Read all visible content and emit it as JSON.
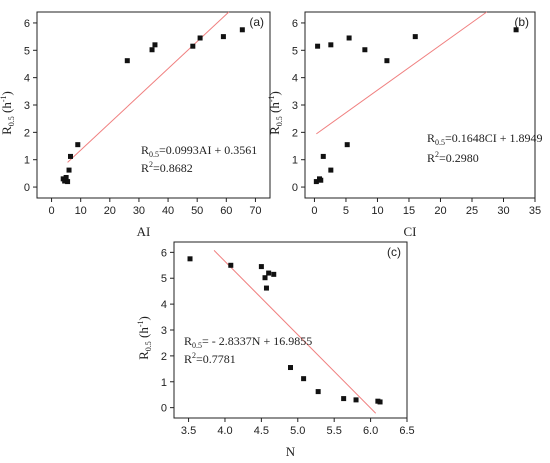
{
  "chart_data": [
    {
      "type": "scatter",
      "panel_label": "(a)",
      "xlabel": "AI",
      "ylabel": {
        "main": "R",
        "sub": "0.5",
        "unit_pre": " (h",
        "unit_sup": "-1",
        "unit_post": ")"
      },
      "xlim": [
        -5,
        75
      ],
      "ylim": [
        -0.4,
        6.4
      ],
      "xticks": [
        0,
        10,
        20,
        30,
        40,
        50,
        60,
        70
      ],
      "yticks": [
        0,
        1,
        2,
        3,
        4,
        5,
        6
      ],
      "grid": false,
      "points": [
        [
          4.0,
          0.3
        ],
        [
          4.5,
          0.22
        ],
        [
          5.0,
          0.35
        ],
        [
          5.5,
          0.2
        ],
        [
          6.0,
          0.62
        ],
        [
          6.5,
          1.12
        ],
        [
          9.0,
          1.55
        ],
        [
          26.0,
          4.62
        ],
        [
          34.5,
          5.02
        ],
        [
          35.5,
          5.2
        ],
        [
          48.5,
          5.15
        ],
        [
          51.0,
          5.45
        ],
        [
          59.0,
          5.5
        ],
        [
          65.5,
          5.75
        ]
      ],
      "fit": {
        "slope": 0.0993,
        "intercept": 0.3561,
        "x_range": [
          5.5,
          70
        ]
      },
      "equation": {
        "lhs_main": "R",
        "lhs_sub": "0.5",
        "rhs": "=0.0993AI + 0.3561"
      },
      "r2": {
        "label": "R",
        "sup": "2",
        "value": "=0.8682"
      }
    },
    {
      "type": "scatter",
      "panel_label": "(b)",
      "xlabel": "CI",
      "ylabel": {
        "main": "R",
        "sub": "0.5",
        "unit_pre": " (h",
        "unit_sup": "-1",
        "unit_post": ")"
      },
      "xlim": [
        -1.5,
        35
      ],
      "ylim": [
        -0.4,
        6.4
      ],
      "xticks": [
        0,
        5,
        10,
        15,
        20,
        25,
        30,
        35
      ],
      "yticks": [
        0,
        1,
        2,
        3,
        4,
        5,
        6
      ],
      "grid": false,
      "points": [
        [
          0.3,
          0.2
        ],
        [
          0.8,
          0.3
        ],
        [
          1.0,
          0.25
        ],
        [
          1.4,
          1.12
        ],
        [
          2.6,
          0.62
        ],
        [
          0.5,
          5.15
        ],
        [
          2.6,
          5.2
        ],
        [
          5.2,
          1.55
        ],
        [
          5.5,
          5.45
        ],
        [
          8.0,
          5.02
        ],
        [
          11.5,
          4.62
        ],
        [
          16.0,
          5.5
        ],
        [
          32.0,
          5.75
        ]
      ],
      "fit": {
        "slope": 0.1648,
        "intercept": 1.8949,
        "x_range": [
          0.3,
          35
        ]
      },
      "equation": {
        "lhs_main": "R",
        "lhs_sub": "0.5",
        "rhs": "=0.1648CI + 1.8949"
      },
      "r2": {
        "label": "R",
        "sup": "2",
        "value": "=0.2980"
      }
    },
    {
      "type": "scatter",
      "panel_label": "(c)",
      "xlabel": "N",
      "ylabel": {
        "main": "R",
        "sub": "0.5",
        "unit_pre": " (h",
        "unit_sup": "-1",
        "unit_post": ")"
      },
      "xlim": [
        3.3,
        6.5
      ],
      "ylim": [
        -0.4,
        6.4
      ],
      "xticks": [
        3.5,
        4.0,
        4.5,
        5.0,
        5.5,
        6.0,
        6.5
      ],
      "xtick_labels": [
        "3.5",
        "4.0",
        "4.5",
        "5.0",
        "5.5",
        "6.0",
        "6.5"
      ],
      "yticks": [
        0,
        1,
        2,
        3,
        4,
        5,
        6
      ],
      "grid": false,
      "points": [
        [
          3.52,
          5.75
        ],
        [
          4.08,
          5.5
        ],
        [
          4.5,
          5.45
        ],
        [
          4.55,
          5.02
        ],
        [
          4.57,
          4.62
        ],
        [
          4.6,
          5.2
        ],
        [
          4.67,
          5.15
        ],
        [
          4.9,
          1.55
        ],
        [
          5.08,
          1.12
        ],
        [
          5.28,
          0.62
        ],
        [
          5.63,
          0.35
        ],
        [
          5.8,
          0.3
        ],
        [
          6.1,
          0.25
        ],
        [
          6.13,
          0.22
        ]
      ],
      "fit": {
        "slope": -2.8337,
        "intercept": 16.9855,
        "x_range": [
          3.85,
          6.07
        ]
      },
      "equation": {
        "lhs_main": "R",
        "lhs_sub": "0.5",
        "rhs": "= - 2.8337N + 16.9855"
      },
      "r2": {
        "label": "R",
        "sup": "2",
        "value": "=0.7781"
      }
    }
  ]
}
